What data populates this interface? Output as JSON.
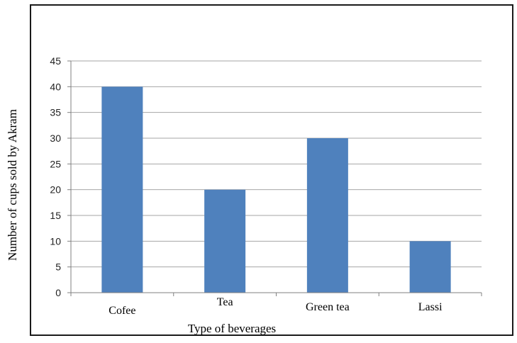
{
  "chart_data": {
    "type": "bar",
    "categories": [
      "Cofee",
      "Tea",
      "Green tea",
      "Lassi"
    ],
    "values": [
      40,
      20,
      30,
      10
    ],
    "title": "",
    "xlabel": "Type of beverages",
    "ylabel": "Number of cups  sold by Akram",
    "ylim": [
      0,
      45
    ],
    "yticks": [
      0,
      5,
      10,
      15,
      20,
      25,
      30,
      35,
      40,
      45
    ],
    "grid": true,
    "bar_color": "#4F81BD",
    "grid_color": "#A6A6A6"
  }
}
